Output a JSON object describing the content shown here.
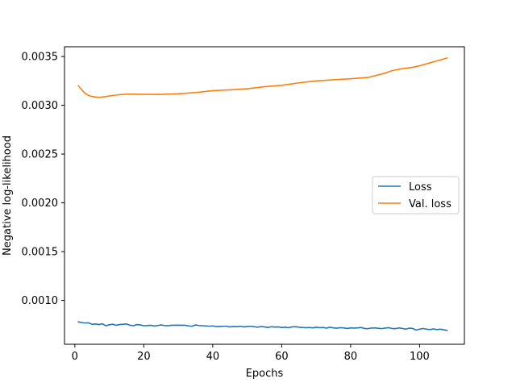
{
  "chart_data": {
    "type": "line",
    "title": "",
    "xlabel": "Epochs",
    "ylabel": "Negative log-likelihood",
    "xlim": [
      -3,
      113
    ],
    "ylim": [
      0.00055,
      0.0036
    ],
    "xticks": [
      0,
      20,
      40,
      60,
      80,
      100
    ],
    "xtick_labels": [
      "0",
      "20",
      "40",
      "60",
      "80",
      "100"
    ],
    "yticks": [
      0.001,
      0.0015,
      0.002,
      0.0025,
      0.003,
      0.0035
    ],
    "ytick_labels": [
      "0.0010",
      "0.0015",
      "0.0020",
      "0.0025",
      "0.0030",
      "0.0035"
    ],
    "grid": false,
    "legend_position": "center-right",
    "series": [
      {
        "name": "Loss",
        "color": "#1f77b4",
        "x": [
          1,
          2,
          3,
          4,
          5,
          6,
          7,
          8,
          9,
          10,
          11,
          12,
          13,
          14,
          15,
          16,
          17,
          18,
          19,
          20,
          21,
          22,
          23,
          24,
          25,
          26,
          27,
          28,
          29,
          30,
          31,
          32,
          33,
          34,
          35,
          36,
          37,
          38,
          39,
          40,
          41,
          42,
          43,
          44,
          45,
          46,
          47,
          48,
          49,
          50,
          51,
          52,
          53,
          54,
          55,
          56,
          57,
          58,
          59,
          60,
          61,
          62,
          63,
          64,
          65,
          66,
          67,
          68,
          69,
          70,
          71,
          72,
          73,
          74,
          75,
          76,
          77,
          78,
          79,
          80,
          81,
          82,
          83,
          84,
          85,
          86,
          87,
          88,
          89,
          90,
          91,
          92,
          93,
          94,
          95,
          96,
          97,
          98,
          99,
          100,
          101,
          102,
          103,
          104,
          105,
          106,
          107,
          108
        ],
        "y": [
          0.00078,
          0.000772,
          0.000768,
          0.00077,
          0.000755,
          0.000758,
          0.000752,
          0.00076,
          0.00074,
          0.00075,
          0.000755,
          0.000745,
          0.000752,
          0.000755,
          0.000758,
          0.000745,
          0.00074,
          0.000752,
          0.000748,
          0.00074,
          0.000742,
          0.000745,
          0.000738,
          0.000742,
          0.000748,
          0.000742,
          0.00074,
          0.000745,
          0.000745,
          0.000746,
          0.000745,
          0.000745,
          0.000738,
          0.000735,
          0.000748,
          0.000742,
          0.00074,
          0.000738,
          0.000735,
          0.000738,
          0.000732,
          0.000732,
          0.000735,
          0.000735,
          0.000728,
          0.000732,
          0.00073,
          0.000735,
          0.000728,
          0.000732,
          0.000735,
          0.00073,
          0.000725,
          0.000732,
          0.000728,
          0.000722,
          0.00073,
          0.000726,
          0.000728,
          0.000722,
          0.000725,
          0.00072,
          0.000728,
          0.00073,
          0.000725,
          0.000722,
          0.00072,
          0.000722,
          0.000718,
          0.000724,
          0.00072,
          0.000722,
          0.000716,
          0.000725,
          0.000718,
          0.000715,
          0.00072,
          0.000718,
          0.000712,
          0.000718,
          0.000716,
          0.000718,
          0.000722,
          0.000712,
          0.00071,
          0.000716,
          0.000718,
          0.000714,
          0.00071,
          0.000716,
          0.00072,
          0.000712,
          0.00071,
          0.000718,
          0.000712,
          0.000705,
          0.000715,
          0.000712,
          0.000695,
          0.000705,
          0.000712,
          0.000705,
          0.0007,
          0.000708,
          0.0007,
          0.000705,
          0.000698,
          0.000692
        ]
      },
      {
        "name": "Val. loss",
        "color": "#ff7f0e",
        "x": [
          1,
          2,
          3,
          4,
          5,
          6,
          7,
          8,
          10,
          12,
          14,
          16,
          20,
          25,
          30,
          35,
          40,
          45,
          50,
          55,
          60,
          65,
          70,
          75,
          80,
          85,
          90,
          92,
          95,
          98,
          100,
          102,
          105,
          108
        ],
        "y": [
          0.0032,
          0.00316,
          0.00312,
          0.0031,
          0.00309,
          0.003085,
          0.003082,
          0.003085,
          0.003095,
          0.003105,
          0.003112,
          0.003115,
          0.003112,
          0.003112,
          0.003118,
          0.00313,
          0.00315,
          0.003158,
          0.00317,
          0.00319,
          0.003205,
          0.00323,
          0.00325,
          0.003262,
          0.003272,
          0.003285,
          0.00333,
          0.003355,
          0.003375,
          0.00339,
          0.003405,
          0.003425,
          0.003455,
          0.003485
        ]
      }
    ]
  }
}
